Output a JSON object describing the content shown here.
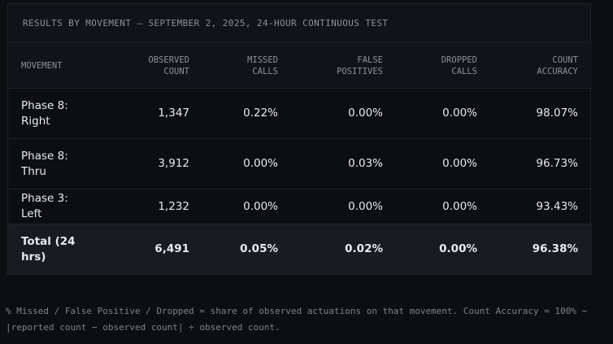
{
  "caption": "Results by movement — September 2, 2025, 24-hour continuous test",
  "table": {
    "headers": [
      {
        "line1": "Movement",
        "line2": ""
      },
      {
        "line1": "Observed",
        "line2": "count"
      },
      {
        "line1": "Missed",
        "line2": "calls"
      },
      {
        "line1": "False",
        "line2": "positives"
      },
      {
        "line1": "Dropped",
        "line2": "calls"
      },
      {
        "line1": "Count",
        "line2": "accuracy"
      }
    ],
    "rows": [
      {
        "movement": "Phase 8: Right",
        "observed": "1,347",
        "missed": "0.22%",
        "false_pos": "0.00%",
        "dropped": "0.00%",
        "accuracy": "98.07%"
      },
      {
        "movement": "Phase 8: Thru",
        "observed": "3,912",
        "missed": "0.00%",
        "false_pos": "0.03%",
        "dropped": "0.00%",
        "accuracy": "96.73%"
      },
      {
        "movement": "Phase 3: Left",
        "observed": "1,232",
        "missed": "0.00%",
        "false_pos": "0.00%",
        "dropped": "0.00%",
        "accuracy": "93.43%"
      }
    ],
    "total": {
      "movement": "Total (24 hrs)",
      "observed": "6,491",
      "missed": "0.05%",
      "false_pos": "0.02%",
      "dropped": "0.00%",
      "accuracy": "96.38%"
    }
  },
  "footnote": "% Missed / False Positive / Dropped = share of observed actuations on that movement. Count Accuracy = 100% − |reported count − observed count| ÷ observed count."
}
